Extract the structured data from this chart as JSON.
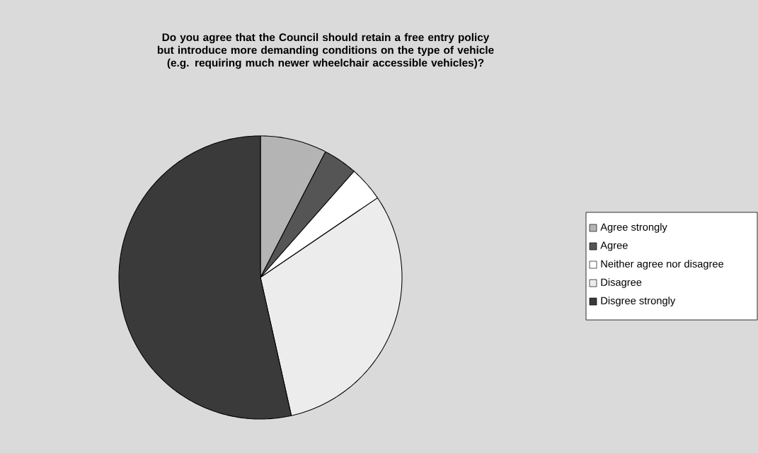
{
  "chart_data": {
    "type": "pie",
    "title": "Do you agree that the Council should retain a free entry policy but introduce more demanding conditions on the type of vehicle (e.g. requiring much newer wheelchair accessible vehicles)?",
    "categories": [
      "Agree strongly",
      "Agree",
      "Neither agree nor disagree",
      "Disagree",
      "Disgree strongly"
    ],
    "values": [
      7.6,
      3.9,
      4.0,
      31.0,
      53.5
    ],
    "colors": [
      "#b4b4b4",
      "#555555",
      "#ffffff",
      "#ececec",
      "#3a3a3a"
    ],
    "legend": "right"
  }
}
